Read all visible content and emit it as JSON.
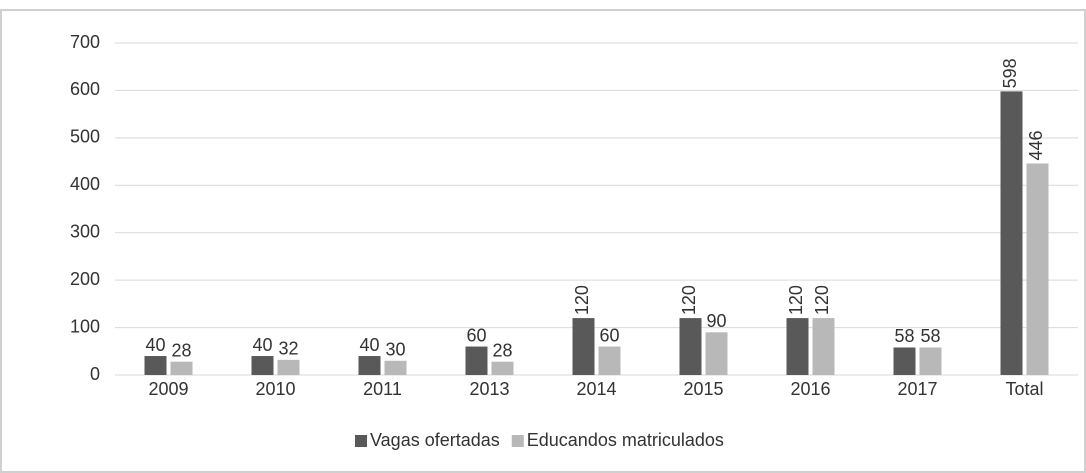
{
  "chart_data": {
    "type": "bar",
    "categories": [
      "2009",
      "2010",
      "2011",
      "2013",
      "2014",
      "2015",
      "2016",
      "2017",
      "Total"
    ],
    "series": [
      {
        "name": "Vagas ofertadas",
        "color": "#595959",
        "values": [
          40,
          40,
          40,
          60,
          120,
          120,
          120,
          58,
          598
        ]
      },
      {
        "name": "Educandos matriculados",
        "color": "#b8b8b8",
        "values": [
          28,
          32,
          30,
          28,
          60,
          90,
          120,
          58,
          446
        ]
      }
    ],
    "ylim": [
      0,
      700
    ],
    "yticks": [
      0,
      100,
      200,
      300,
      400,
      500,
      600,
      700
    ],
    "grid": true,
    "legend": "bottom"
  }
}
